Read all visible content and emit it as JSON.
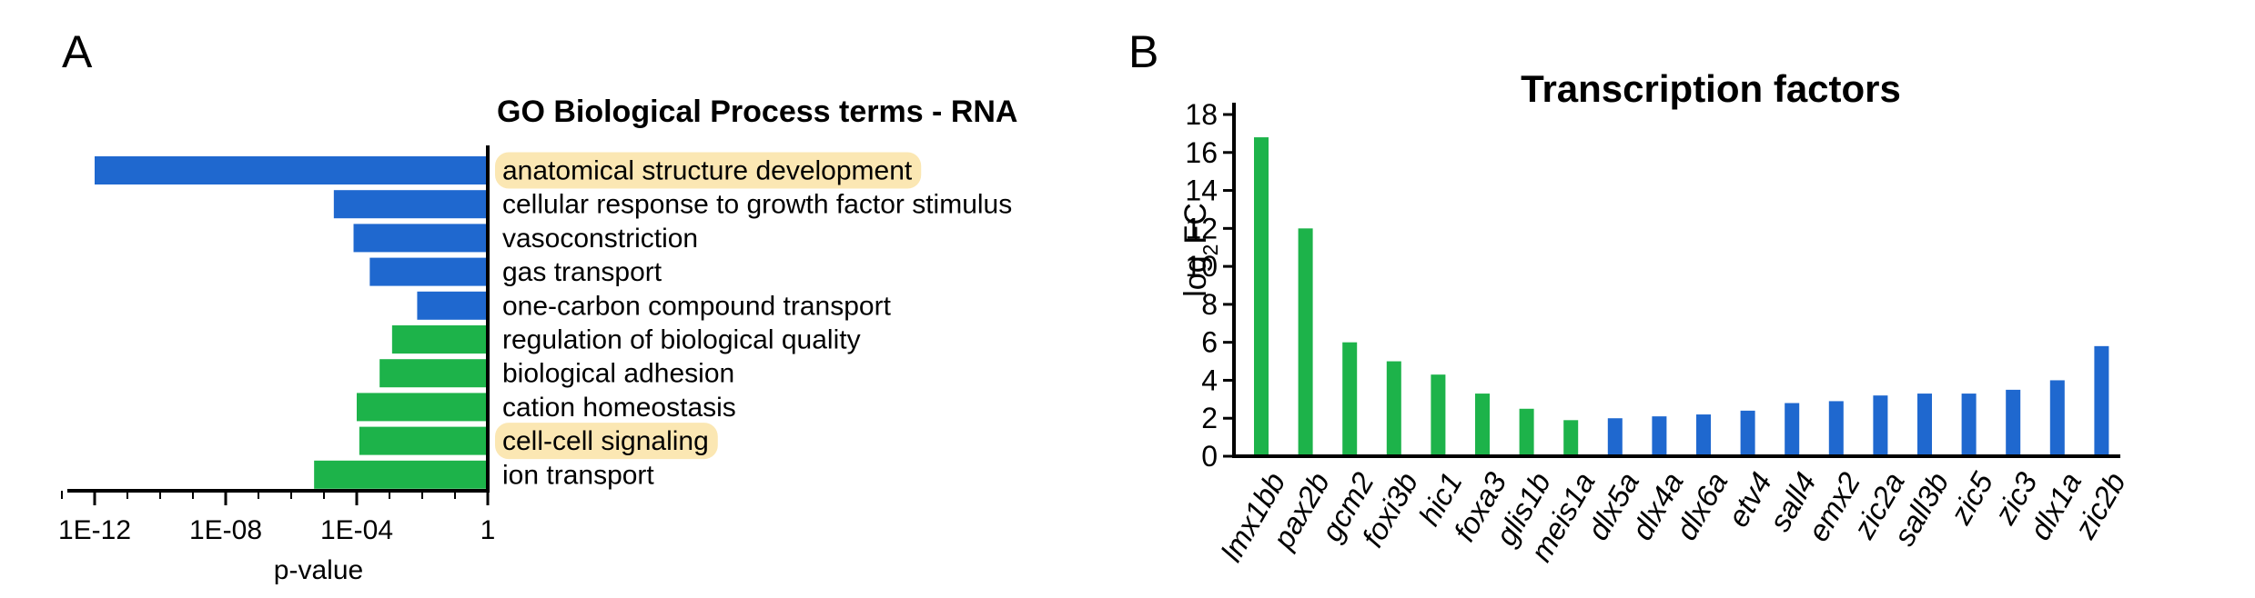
{
  "panels": {
    "a_letter": "A",
    "b_letter": "B"
  },
  "colors": {
    "blue": "#1f68cf",
    "green": "#1db34a",
    "highlight": "#fbe7b3",
    "axis": "#000000"
  },
  "chart_data": [
    {
      "type": "bar",
      "orientation": "horizontal",
      "title": "GO Biological Process terms - RNA",
      "xlabel": "p-value",
      "x_scale": "log10",
      "xlim": [
        1e-14,
        1
      ],
      "ticks": [
        {
          "value": 1e-12,
          "label": "1E-12"
        },
        {
          "value": 1e-08,
          "label": "1E-08"
        },
        {
          "value": 0.0001,
          "label": "1E-04"
        },
        {
          "value": 1,
          "label": "1"
        }
      ],
      "bars": [
        {
          "label": "anatomical structure development",
          "p_value": 1e-12,
          "color": "blue",
          "highlight": true
        },
        {
          "label": "cellular response to growth factor stimulus",
          "p_value": 2e-05,
          "color": "blue",
          "highlight": false
        },
        {
          "label": "vasoconstriction",
          "p_value": 8e-05,
          "color": "blue",
          "highlight": false
        },
        {
          "label": "gas transport",
          "p_value": 0.00025,
          "color": "blue",
          "highlight": false
        },
        {
          "label": "one-carbon compound transport",
          "p_value": 0.007,
          "color": "blue",
          "highlight": false
        },
        {
          "label": "regulation of biological quality",
          "p_value": 0.0012,
          "color": "green",
          "highlight": false
        },
        {
          "label": "biological adhesion",
          "p_value": 0.0005,
          "color": "green",
          "highlight": false
        },
        {
          "label": "cation homeostasis",
          "p_value": 0.0001,
          "color": "green",
          "highlight": false
        },
        {
          "label": "cell-cell signaling",
          "p_value": 0.00012,
          "color": "green",
          "highlight": true
        },
        {
          "label": "ion transport",
          "p_value": 5e-06,
          "color": "green",
          "highlight": false
        }
      ]
    },
    {
      "type": "bar",
      "orientation": "vertical",
      "title": "Transcription factors",
      "ylabel": "log2FC",
      "ylabel_main": "log",
      "ylabel_sub": "2",
      "ylabel_tail": "FC",
      "ylim": [
        0,
        18
      ],
      "yticks": [
        0,
        2,
        4,
        6,
        8,
        10,
        12,
        14,
        16,
        18
      ],
      "categories": [
        "lmx1bb",
        "pax2b",
        "gcm2",
        "foxi3b",
        "hic1",
        "foxa3",
        "glis1b",
        "meis1a",
        "dlx5a",
        "dlx4a",
        "dlx6a",
        "etv4",
        "sall4",
        "emx2",
        "zic2a",
        "sall3b",
        "zic5",
        "zic3",
        "dlx1a",
        "zic2b"
      ],
      "values": [
        16.8,
        12.0,
        6.0,
        5.0,
        4.3,
        3.3,
        2.5,
        1.9,
        2.0,
        2.1,
        2.2,
        2.4,
        2.8,
        2.9,
        3.2,
        3.3,
        3.3,
        3.5,
        4.0,
        5.8
      ],
      "colors": [
        "green",
        "green",
        "green",
        "green",
        "green",
        "green",
        "green",
        "green",
        "blue",
        "blue",
        "blue",
        "blue",
        "blue",
        "blue",
        "blue",
        "blue",
        "blue",
        "blue",
        "blue",
        "blue"
      ]
    }
  ]
}
